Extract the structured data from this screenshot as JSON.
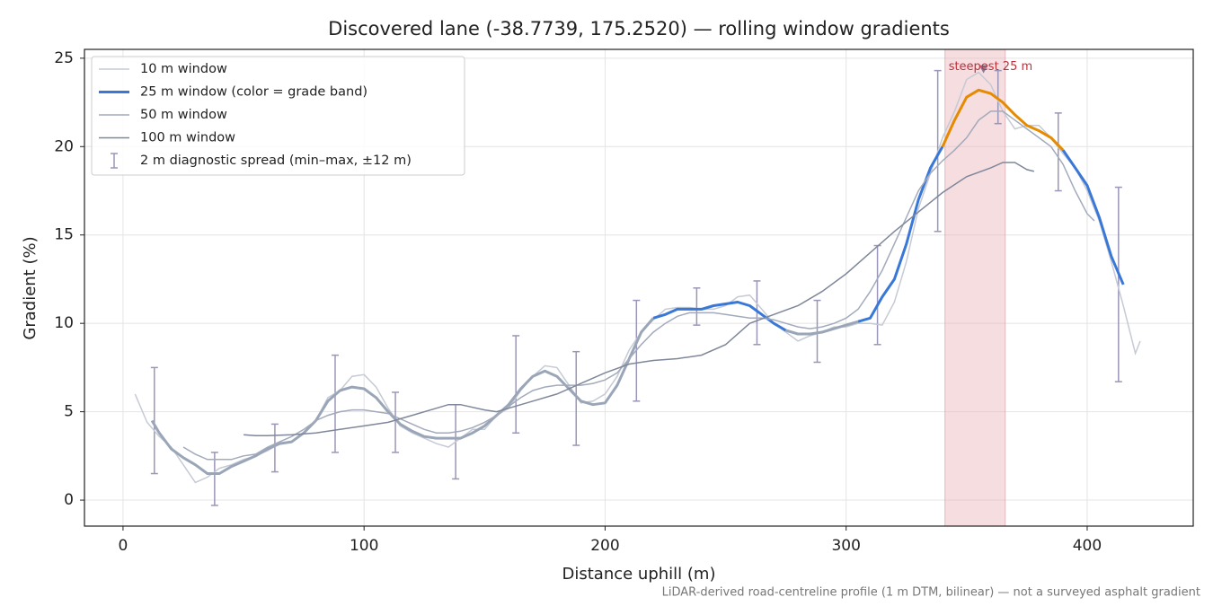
{
  "chart_data": {
    "type": "line",
    "title": "Discovered lane (-38.7739, 175.2520) — rolling window gradients",
    "x_label": "Distance uphill (m)",
    "y_label": "Gradient (%)",
    "footnote": "LiDAR-derived road-centreline profile (1 m DTM, bilinear) — not a surveyed asphalt gradient",
    "xlim": [
      -16,
      444
    ],
    "ylim": [
      -1.47,
      25.5
    ],
    "xticks": [
      0,
      100,
      200,
      300,
      400
    ],
    "yticks": [
      0,
      5,
      10,
      15,
      20,
      25
    ],
    "grid": true,
    "legend": "upper left",
    "series": [
      {
        "name": "10 m window",
        "color": "#c5cad4",
        "width": 1.5,
        "x": [
          5,
          10,
          15,
          20,
          25,
          30,
          35,
          40,
          45,
          50,
          55,
          60,
          65,
          70,
          75,
          80,
          85,
          90,
          95,
          100,
          105,
          110,
          115,
          120,
          125,
          130,
          135,
          140,
          145,
          150,
          155,
          160,
          165,
          170,
          175,
          180,
          185,
          190,
          195,
          200,
          205,
          210,
          215,
          220,
          225,
          230,
          235,
          240,
          245,
          250,
          255,
          260,
          265,
          270,
          275,
          280,
          285,
          290,
          295,
          300,
          305,
          310,
          315,
          320,
          325,
          330,
          335,
          340,
          345,
          350,
          355,
          360,
          365,
          370,
          375,
          380,
          385,
          390,
          395,
          400,
          405,
          410,
          415,
          420,
          422
        ],
        "values": [
          6.0,
          4.4,
          3.6,
          3.0,
          2.0,
          1.0,
          1.3,
          1.8,
          2.0,
          2.3,
          2.5,
          2.8,
          3.2,
          3.3,
          3.8,
          4.5,
          5.8,
          6.2,
          7.0,
          7.1,
          6.4,
          5.2,
          4.2,
          3.8,
          3.5,
          3.2,
          3.0,
          3.5,
          4.0,
          4.0,
          4.8,
          5.2,
          6.2,
          7.0,
          7.6,
          7.5,
          6.5,
          5.5,
          5.6,
          6.0,
          7.0,
          8.5,
          9.5,
          10.2,
          10.8,
          10.9,
          10.9,
          10.8,
          10.8,
          11.0,
          11.5,
          11.6,
          10.8,
          10.0,
          9.5,
          9.0,
          9.3,
          9.5,
          9.8,
          9.8,
          10.0,
          10.0,
          9.9,
          11.2,
          13.5,
          16.5,
          18.5,
          20.5,
          22.0,
          23.8,
          24.2,
          23.5,
          22.0,
          21.0,
          21.2,
          21.2,
          20.5,
          19.6,
          18.8,
          17.5,
          15.8,
          13.5,
          11.0,
          8.3,
          9.0
        ]
      },
      {
        "name": "25 m window (color = grade band)",
        "color": "#3a78d8",
        "width": 3,
        "band_edges": [
          10,
          20
        ],
        "band_colors": [
          "#9aa6b8",
          "#3a78d8",
          "#e68a00"
        ],
        "x": [
          12,
          15,
          20,
          25,
          30,
          35,
          40,
          45,
          50,
          55,
          60,
          65,
          70,
          75,
          80,
          85,
          90,
          95,
          100,
          105,
          110,
          115,
          120,
          125,
          130,
          135,
          140,
          145,
          150,
          155,
          160,
          165,
          170,
          175,
          180,
          185,
          190,
          195,
          200,
          205,
          210,
          215,
          220,
          225,
          230,
          235,
          240,
          245,
          250,
          255,
          260,
          265,
          270,
          275,
          280,
          285,
          290,
          295,
          300,
          305,
          310,
          315,
          320,
          325,
          330,
          335,
          340,
          345,
          350,
          355,
          360,
          365,
          370,
          375,
          380,
          385,
          390,
          395,
          400,
          405,
          410,
          415
        ],
        "values": [
          4.5,
          3.8,
          2.9,
          2.4,
          2.0,
          1.5,
          1.5,
          1.9,
          2.2,
          2.5,
          2.9,
          3.2,
          3.3,
          3.8,
          4.5,
          5.6,
          6.2,
          6.4,
          6.3,
          5.8,
          5.0,
          4.3,
          3.9,
          3.6,
          3.5,
          3.5,
          3.5,
          3.8,
          4.2,
          4.8,
          5.4,
          6.3,
          7.0,
          7.3,
          7.0,
          6.3,
          5.6,
          5.4,
          5.5,
          6.5,
          8.0,
          9.5,
          10.3,
          10.5,
          10.8,
          10.8,
          10.8,
          11.0,
          11.1,
          11.2,
          11.0,
          10.5,
          10.0,
          9.6,
          9.4,
          9.4,
          9.5,
          9.7,
          9.9,
          10.1,
          10.3,
          11.5,
          12.5,
          14.5,
          17.0,
          18.8,
          20.0,
          21.5,
          22.8,
          23.2,
          23.0,
          22.5,
          21.8,
          21.2,
          20.9,
          20.5,
          19.8,
          18.8,
          17.8,
          16.0,
          13.8,
          12.2
        ]
      },
      {
        "name": "50 m window",
        "color": "#a2aabb",
        "width": 1.5,
        "x": [
          25,
          30,
          35,
          40,
          45,
          50,
          55,
          60,
          65,
          70,
          75,
          80,
          85,
          90,
          95,
          100,
          105,
          110,
          115,
          120,
          125,
          130,
          135,
          140,
          145,
          150,
          155,
          160,
          165,
          170,
          175,
          180,
          185,
          190,
          195,
          200,
          205,
          210,
          215,
          220,
          225,
          230,
          235,
          240,
          245,
          250,
          255,
          260,
          265,
          270,
          275,
          280,
          285,
          290,
          295,
          300,
          305,
          310,
          315,
          320,
          325,
          330,
          335,
          340,
          345,
          350,
          355,
          360,
          365,
          370,
          375,
          380,
          385,
          390,
          395,
          400,
          403
        ],
        "values": [
          3.0,
          2.6,
          2.3,
          2.3,
          2.3,
          2.5,
          2.6,
          3.0,
          3.3,
          3.6,
          4.0,
          4.5,
          4.8,
          5.0,
          5.1,
          5.1,
          5.0,
          4.9,
          4.6,
          4.3,
          4.0,
          3.8,
          3.8,
          3.9,
          4.1,
          4.4,
          4.8,
          5.3,
          5.8,
          6.2,
          6.4,
          6.5,
          6.5,
          6.5,
          6.6,
          6.8,
          7.2,
          8.0,
          8.8,
          9.5,
          10.0,
          10.4,
          10.6,
          10.6,
          10.6,
          10.5,
          10.4,
          10.3,
          10.3,
          10.2,
          10.0,
          9.8,
          9.7,
          9.8,
          10.0,
          10.3,
          10.8,
          11.8,
          13.0,
          14.5,
          16.0,
          17.5,
          18.5,
          19.2,
          19.8,
          20.5,
          21.5,
          22.0,
          22.0,
          21.5,
          21.0,
          20.5,
          20.0,
          19.0,
          17.5,
          16.2,
          15.8
        ]
      },
      {
        "name": "100 m window",
        "color": "#7f879a",
        "width": 1.5,
        "x": [
          50,
          55,
          60,
          70,
          80,
          90,
          100,
          110,
          120,
          130,
          135,
          140,
          150,
          155,
          160,
          170,
          180,
          190,
          200,
          210,
          220,
          230,
          240,
          250,
          260,
          270,
          280,
          290,
          300,
          310,
          320,
          330,
          340,
          350,
          360,
          365,
          370,
          375,
          378
        ],
        "values": [
          3.7,
          3.65,
          3.65,
          3.7,
          3.8,
          4.0,
          4.2,
          4.4,
          4.8,
          5.2,
          5.4,
          5.4,
          5.1,
          5.0,
          5.2,
          5.6,
          6.0,
          6.6,
          7.2,
          7.7,
          7.9,
          8.0,
          8.2,
          8.8,
          10.0,
          10.5,
          11.0,
          11.8,
          12.8,
          14.0,
          15.2,
          16.3,
          17.4,
          18.3,
          18.8,
          19.1,
          19.1,
          18.7,
          18.6
        ]
      }
    ],
    "error_bars": {
      "name": "2 m diagnostic spread (min–max, ±12 m)",
      "color": "#9a96b8",
      "x": [
        13,
        38,
        63,
        88,
        113,
        138,
        163,
        188,
        213,
        238,
        263,
        288,
        313,
        338,
        363,
        388,
        413
      ],
      "low": [
        1.5,
        -0.3,
        1.6,
        2.7,
        2.7,
        1.2,
        3.8,
        3.1,
        5.6,
        9.9,
        8.8,
        7.8,
        8.8,
        15.2,
        21.3,
        17.5,
        6.7
      ],
      "high": [
        7.5,
        2.7,
        4.3,
        8.2,
        6.1,
        5.4,
        9.3,
        8.4,
        11.3,
        12.0,
        12.4,
        11.3,
        14.4,
        24.3,
        24.3,
        21.9,
        17.7
      ]
    },
    "highlight": {
      "label": "steepest 25 m",
      "xlim": [
        341,
        366
      ],
      "color": "#e8b4ba",
      "marker_x": 357,
      "marker_y": 24.3,
      "label_color": "#c0303a"
    }
  }
}
